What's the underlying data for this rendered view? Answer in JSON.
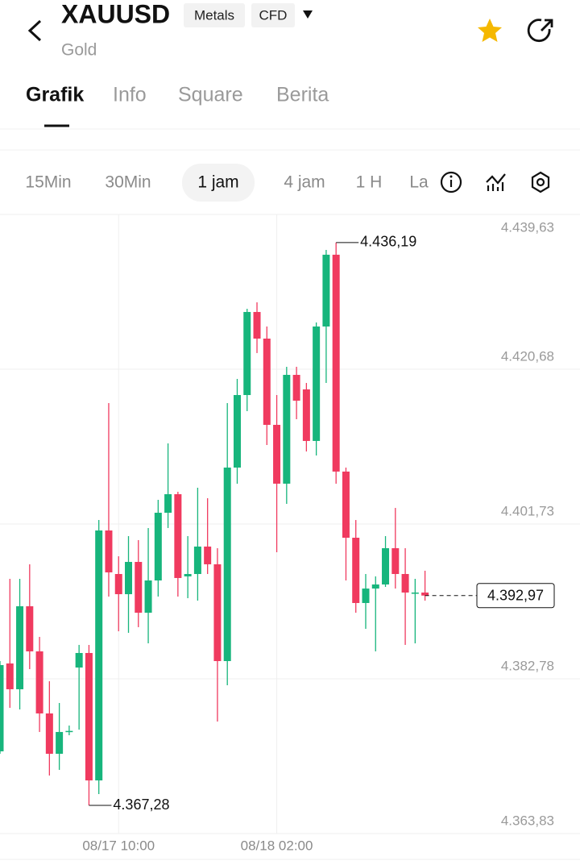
{
  "header": {
    "symbol": "XAUUSD",
    "tags": [
      "Metals",
      "CFD"
    ],
    "name": "Gold"
  },
  "tabs": {
    "items": [
      "Grafik",
      "Info",
      "Square",
      "Berita"
    ],
    "active": 0
  },
  "intervals": {
    "items": [
      "15Min",
      "30Min",
      "1 jam",
      "4 jam",
      "1 H",
      "La"
    ],
    "active": 2
  },
  "chart_data": {
    "type": "candlestick",
    "categories": [
      null,
      null,
      null,
      null,
      null,
      null,
      null,
      null,
      null,
      null,
      null,
      null,
      "08/17 10:00",
      null,
      null,
      null,
      null,
      null,
      null,
      null,
      null,
      null,
      null,
      null,
      null,
      null,
      null,
      null,
      "08/18 02:00",
      null,
      null,
      null,
      null,
      null,
      null,
      null,
      null,
      null,
      null,
      null,
      null,
      null,
      null,
      null
    ],
    "series": [
      {
        "open": [
          4373.9,
          4384.66,
          4381.5,
          4391.66,
          4386.14,
          4378.54,
          4373.6,
          4376.3,
          4384.16,
          4385.94,
          4370.34,
          4400.94,
          4395.61,
          4393.14,
          4397.09,
          4390.87,
          4394.82,
          4403.11,
          4405.38,
          4395.32,
          4395.61,
          4398.97,
          4396.8,
          4384.95,
          4408.64,
          4417.52,
          4427.69,
          4424.43,
          4413.87,
          4406.67,
          4419.99,
          4418.21,
          4411.9,
          4425.91,
          4434.7,
          4408.15,
          4400.05,
          4392.06,
          4393.83,
          4394.33,
          4398.77,
          4395.61,
          4393.24,
          4393.34
        ],
        "high": [
          4384.95,
          4395.02,
          4395.02,
          4396.8,
          4387.91,
          4382.48,
          4379.82,
          4377.06,
          4386.93,
          4386.93,
          4402.22,
          4416.54,
          4397.78,
          4400.25,
          4399.76,
          4401.24,
          4404.69,
          4411.6,
          4405.68,
          4400.25,
          4406.17,
          4404.89,
          4398.77,
          4416.54,
          4419.5,
          4428.08,
          4428.87,
          4425.91,
          4417.52,
          4420.98,
          4420.98,
          4419.0,
          4426.41,
          4435.29,
          4436.19,
          4408.64,
          4402.22,
          4395.61,
          4395.32,
          4400.25,
          4403.7,
          4398.77,
          4395.02,
          4396.01
        ],
        "low": [
          4373.6,
          4379.23,
          4379.03,
          4383.96,
          4376.27,
          4370.94,
          4371.63,
          4375.87,
          4376.56,
          4367.28,
          4368.67,
          4392.85,
          4388.6,
          4388.41,
          4389.1,
          4387.12,
          4392.85,
          4401.24,
          4392.85,
          4392.65,
          4392.35,
          4395.61,
          4377.55,
          4381.99,
          4406.67,
          4415.55,
          4422.66,
          4411.4,
          4398.28,
          4404.2,
          4414.56,
          4410.61,
          4410.12,
          4419.0,
          4406.67,
          4394.82,
          4390.87,
          4388.9,
          4386.14,
          4394.03,
          4393.83,
          4386.93,
          4387.12,
          4392.35
        ],
        "close": [
          4384.46,
          4381.5,
          4391.66,
          4386.14,
          4378.54,
          4373.6,
          4376.27,
          4376.4,
          4385.94,
          4370.34,
          4400.94,
          4395.81,
          4393.14,
          4397.09,
          4390.87,
          4394.82,
          4403.11,
          4405.38,
          4395.12,
          4395.61,
          4398.97,
          4396.8,
          4384.95,
          4408.64,
          4417.52,
          4427.69,
          4424.43,
          4413.87,
          4406.67,
          4419.99,
          4416.83,
          4411.9,
          4425.91,
          4434.7,
          4408.15,
          4400.05,
          4392.06,
          4393.83,
          4394.33,
          4398.77,
          4395.61,
          4393.34,
          4393.34,
          4392.97
        ]
      }
    ],
    "up_color": "#17b57c",
    "down_color": "#f03a5f",
    "ylim": [
      4363.83,
      4439.63
    ],
    "yticks": [
      {
        "value": 4439.63,
        "label": "4.439,63"
      },
      {
        "value": 4420.68,
        "label": "4.420,68"
      },
      {
        "value": 4401.73,
        "label": "4.401,73"
      },
      {
        "value": 4382.78,
        "label": "4.382,78"
      },
      {
        "value": 4363.83,
        "label": "4.363,83"
      }
    ],
    "grid": true,
    "high_label": "4.436,19",
    "low_label": "4.367,28",
    "last_price_label": "4.392,97"
  }
}
